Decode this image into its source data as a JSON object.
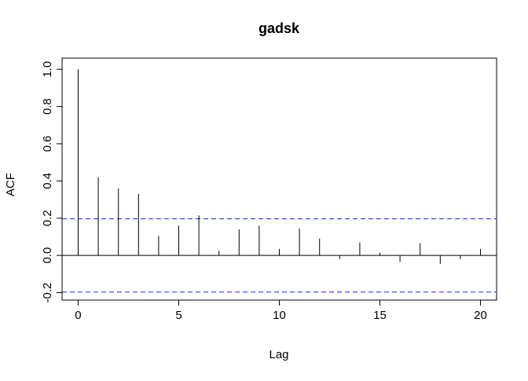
{
  "chart_data": {
    "type": "bar",
    "title": "gadsk",
    "xlabel": "Lag",
    "ylabel": "ACF",
    "xlim": [
      -0.8,
      20.8
    ],
    "ylim": [
      -0.24,
      1.06
    ],
    "x_ticks": [
      0,
      5,
      10,
      15,
      20
    ],
    "x_tick_labels": [
      "0",
      "5",
      "10",
      "15",
      "20"
    ],
    "y_ticks": [
      -0.2,
      0.0,
      0.2,
      0.4,
      0.6,
      0.8,
      1.0
    ],
    "y_tick_labels": [
      "-0.2",
      "0.0",
      "0.2",
      "0.4",
      "0.6",
      "0.8",
      "1.0"
    ],
    "lags": [
      0,
      1,
      2,
      3,
      4,
      5,
      6,
      7,
      8,
      9,
      10,
      11,
      12,
      13,
      14,
      15,
      16,
      17,
      18,
      19,
      20
    ],
    "acf": [
      1.0,
      0.42,
      0.36,
      0.33,
      0.105,
      0.16,
      0.215,
      0.025,
      0.14,
      0.16,
      0.035,
      0.145,
      0.09,
      -0.02,
      0.07,
      0.015,
      -0.035,
      0.065,
      -0.045,
      -0.02,
      0.035
    ],
    "confidence_bounds": [
      0.197,
      -0.197
    ],
    "confidence_line_color": "#3b3bff",
    "grid": false
  }
}
